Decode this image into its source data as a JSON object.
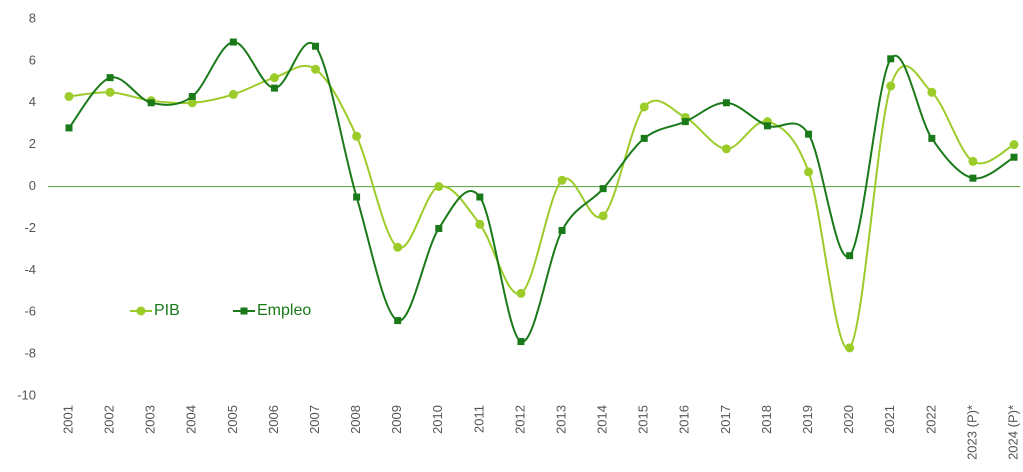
{
  "chart_data": {
    "type": "line",
    "categories": [
      "2001",
      "2002",
      "2003",
      "2004",
      "2005",
      "2006",
      "2007",
      "2008",
      "2009",
      "2010",
      "2011",
      "2012",
      "2013",
      "2014",
      "2015",
      "2016",
      "2017",
      "2018",
      "2019",
      "2020",
      "2021",
      "2022",
      "2023 (P)*",
      "2024 (P)*"
    ],
    "series": [
      {
        "name": "PIB",
        "color": "#9ccc2a",
        "marker": "circle",
        "values": [
          4.3,
          4.5,
          4.1,
          4.0,
          4.4,
          5.2,
          5.6,
          2.4,
          -2.9,
          0.0,
          -1.8,
          -5.1,
          0.3,
          -1.4,
          3.8,
          3.3,
          1.8,
          3.1,
          0.7,
          -7.7,
          4.8,
          4.5,
          1.2,
          2.0
        ]
      },
      {
        "name": "Empleo",
        "color": "#1a7a1a",
        "marker": "square",
        "values": [
          2.8,
          5.2,
          4.0,
          4.3,
          6.9,
          4.7,
          6.7,
          -0.5,
          -6.4,
          -2.0,
          -0.5,
          -7.4,
          -2.1,
          -0.1,
          2.3,
          3.1,
          4.0,
          2.9,
          2.5,
          -3.3,
          6.1,
          2.3,
          0.4,
          1.4
        ]
      }
    ],
    "ylim": [
      -10,
      8
    ],
    "yticks": [
      -10,
      -8,
      -6,
      -4,
      -2,
      0,
      2,
      4,
      6,
      8
    ],
    "smooth": true,
    "legend": "lower-left"
  }
}
